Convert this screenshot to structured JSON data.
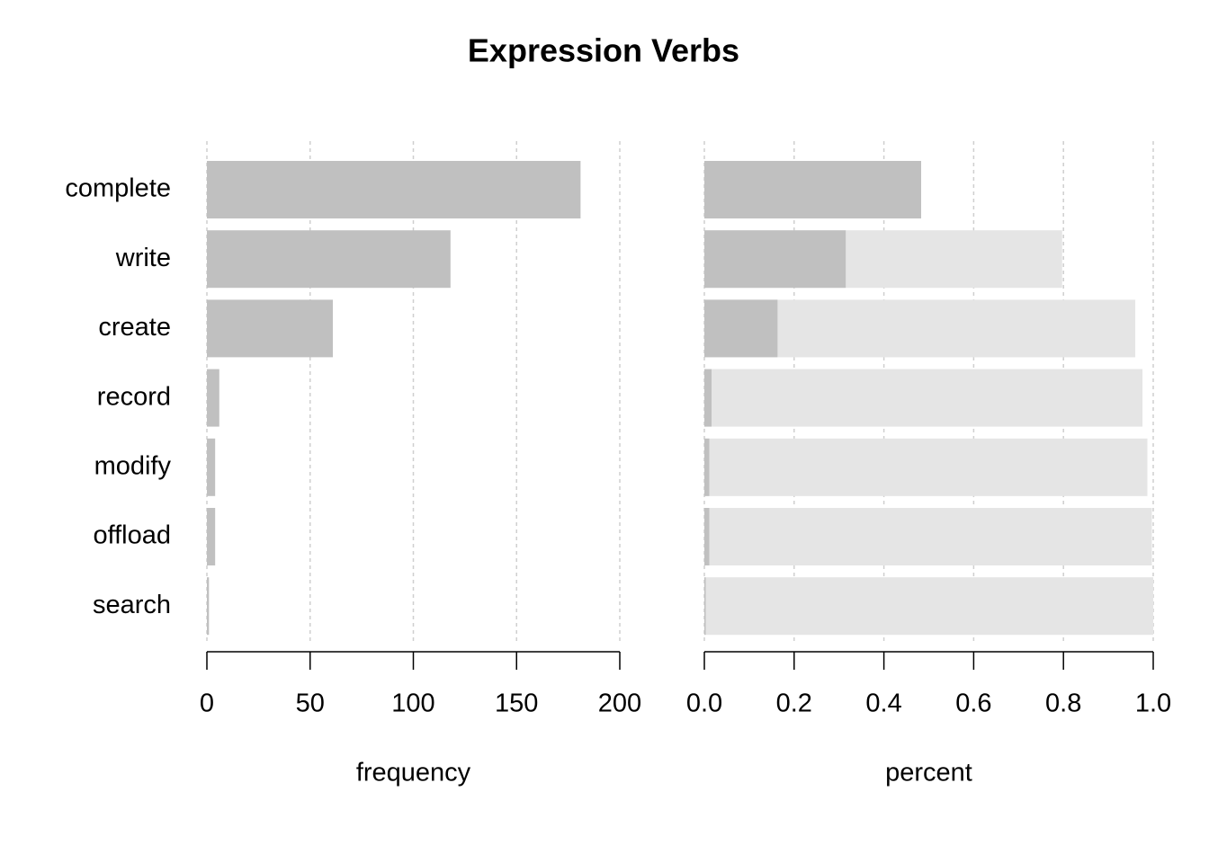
{
  "chart_data": [
    {
      "type": "bar",
      "title": "Expression Verbs",
      "orientation": "horizontal",
      "categories": [
        "complete",
        "write",
        "create",
        "record",
        "modify",
        "offload",
        "search"
      ],
      "values": [
        181,
        118,
        61,
        6,
        4,
        4,
        1
      ],
      "color": "#c0c0c0",
      "xlabel": "frequency",
      "xlim": [
        0,
        200
      ],
      "xticks": [
        0,
        50,
        100,
        150,
        200
      ],
      "grid": true
    },
    {
      "type": "bar",
      "orientation": "horizontal",
      "values": [
        0.483,
        0.315,
        0.163,
        0.016,
        0.011,
        0.011,
        0.003
      ],
      "color": "#c0c0c0",
      "background_values": [
        0.483,
        0.797,
        0.96,
        0.976,
        0.987,
        0.997,
        1
      ],
      "background_color": "#e5e5e5",
      "xlabel": "percent",
      "xlim": [
        0,
        1
      ],
      "xticks": [
        {
          "value": 0,
          "label": "0.0"
        },
        0.2,
        0.4,
        0.6,
        0.8,
        {
          "value": 1,
          "label": "1.0"
        }
      ],
      "grid": true
    }
  ]
}
